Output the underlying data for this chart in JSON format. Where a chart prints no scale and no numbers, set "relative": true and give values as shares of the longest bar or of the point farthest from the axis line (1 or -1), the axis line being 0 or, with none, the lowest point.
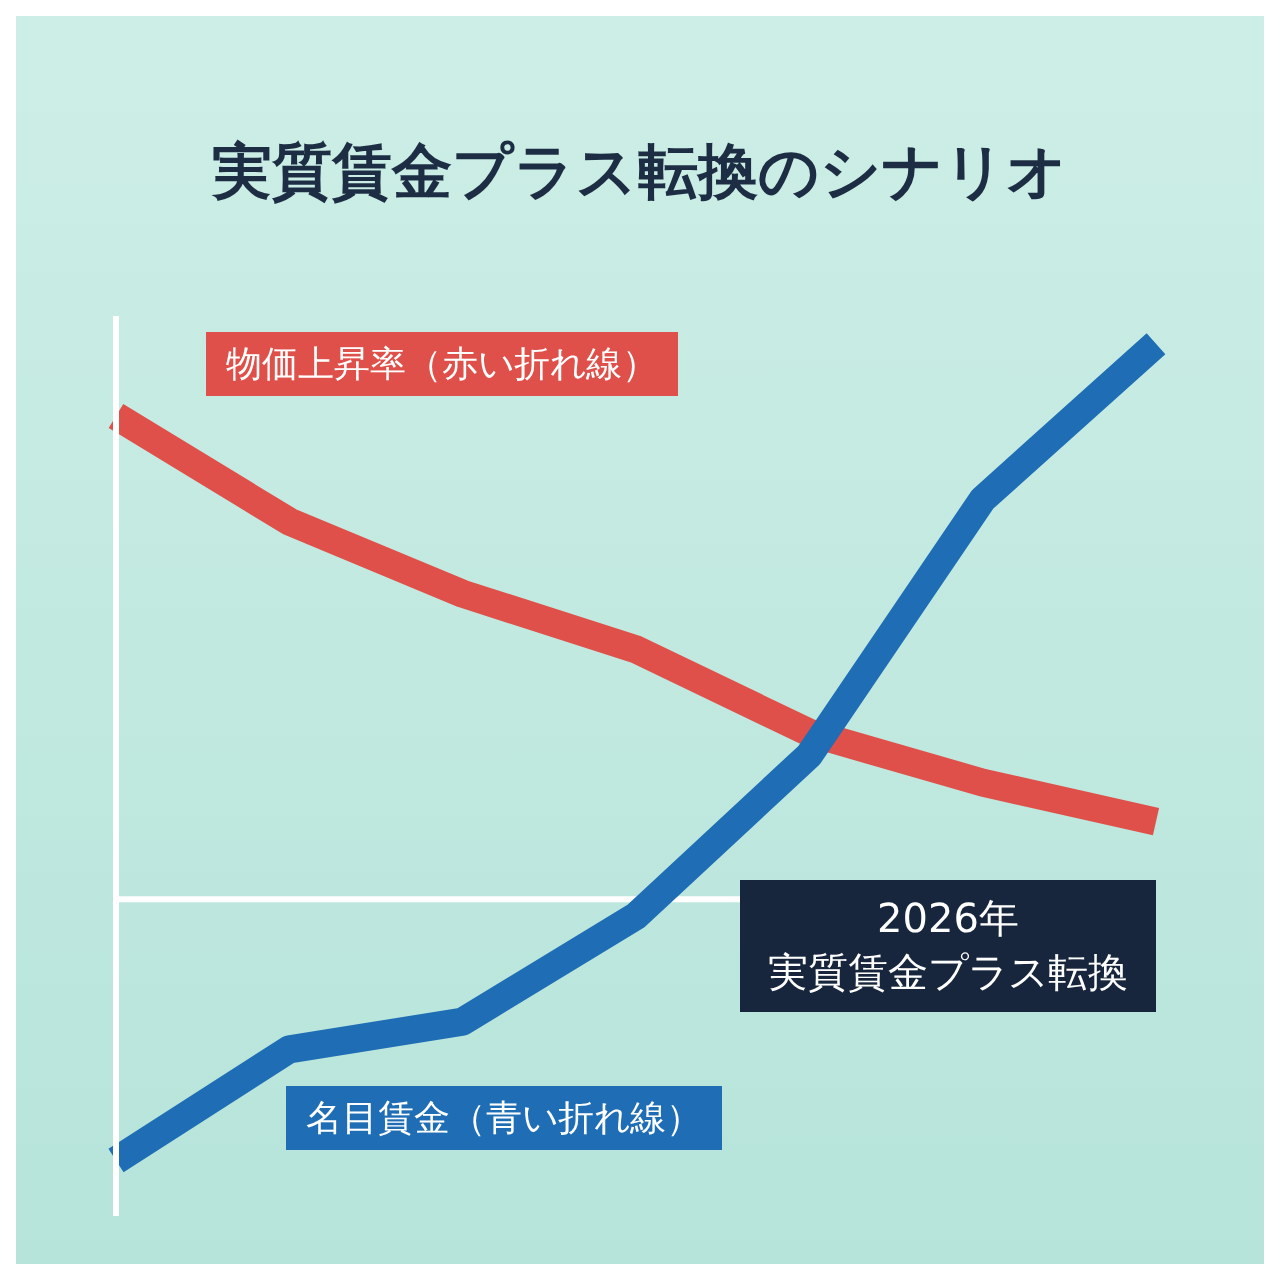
{
  "chart_data": {
    "type": "line",
    "title": "実質賃金プラス転換のシナリオ",
    "relative": true,
    "categories": [
      null,
      null,
      null,
      null,
      null,
      null,
      null
    ],
    "series": [
      {
        "name": "物価上昇率（赤い折れ線）",
        "color": "#e0504a",
        "values": [
          0.87,
          0.68,
          0.55,
          0.45,
          0.3,
          0.21,
          0.14
        ]
      },
      {
        "name": "名目賃金（青い折れ線）",
        "color": "#1f6db5",
        "values": [
          -0.47,
          -0.27,
          -0.22,
          -0.03,
          0.26,
          0.72,
          1
        ]
      }
    ],
    "annotations": [
      "2026年",
      "実質賃金プラス転換"
    ]
  }
}
